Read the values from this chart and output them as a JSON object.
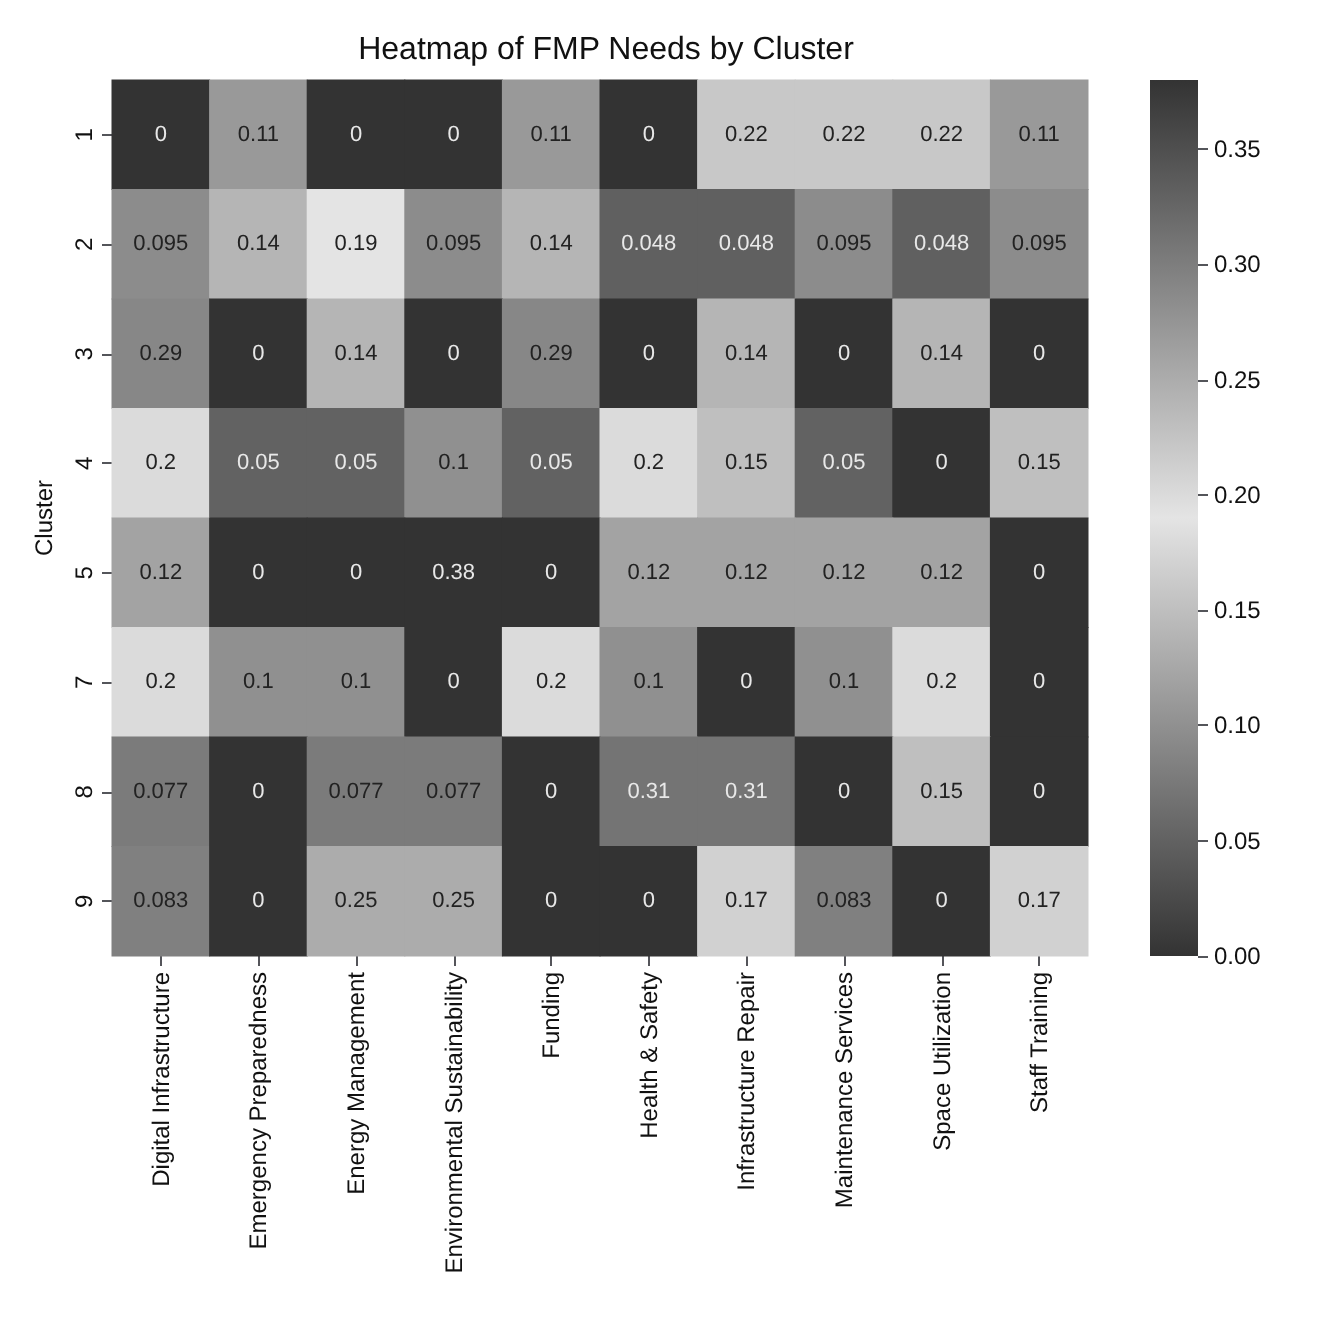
{
  "chart_data": {
    "type": "heatmap",
    "title": "Heatmap of FMP Needs by Cluster",
    "ylabel": "Cluster",
    "categories": [
      "Digital Infrastructure",
      "Emergency Preparedness",
      "Energy Management",
      "Environmental Sustainability",
      "Funding",
      "Health & Safety",
      "Infrastructure Repair",
      "Maintenance Services",
      "Space Utilization",
      "Staff Training"
    ],
    "y_categories": [
      "1",
      "2",
      "3",
      "4",
      "5",
      "7",
      "8",
      "9"
    ],
    "cells": [
      [
        0,
        0.11,
        0,
        0,
        0.11,
        0,
        0.22,
        0.22,
        0.22,
        0.11
      ],
      [
        0.095,
        0.14,
        0.19,
        0.095,
        0.14,
        0.048,
        0.048,
        0.095,
        0.048,
        0.095
      ],
      [
        0.29,
        0,
        0.14,
        0,
        0.29,
        0,
        0.14,
        0,
        0.14,
        0
      ],
      [
        0.2,
        0.05,
        0.05,
        0.1,
        0.05,
        0.2,
        0.15,
        0.05,
        0,
        0.15
      ],
      [
        0.12,
        0,
        0,
        0.38,
        0,
        0.12,
        0.12,
        0.12,
        0.12,
        0
      ],
      [
        0.2,
        0.1,
        0.1,
        0,
        0.2,
        0.1,
        0,
        0.1,
        0.2,
        0
      ],
      [
        0.077,
        0,
        0.077,
        0.077,
        0,
        0.31,
        0.31,
        0,
        0.15,
        0
      ],
      [
        0.083,
        0,
        0.25,
        0.25,
        0,
        0,
        0.17,
        0.083,
        0,
        0.17
      ]
    ],
    "data_labels": true,
    "clim": [
      0,
      0.38
    ],
    "cticks": [
      {
        "value": 0,
        "label": "0.00"
      },
      {
        "value": 0.05,
        "label": "0.05"
      },
      {
        "value": 0.1,
        "label": "0.10"
      },
      {
        "value": 0.15,
        "label": "0.15"
      },
      {
        "value": 0.2,
        "label": "0.20"
      },
      {
        "value": 0.25,
        "label": "0.25"
      },
      {
        "value": 0.3,
        "label": "0.30"
      },
      {
        "value": 0.35,
        "label": "0.35"
      }
    ]
  }
}
